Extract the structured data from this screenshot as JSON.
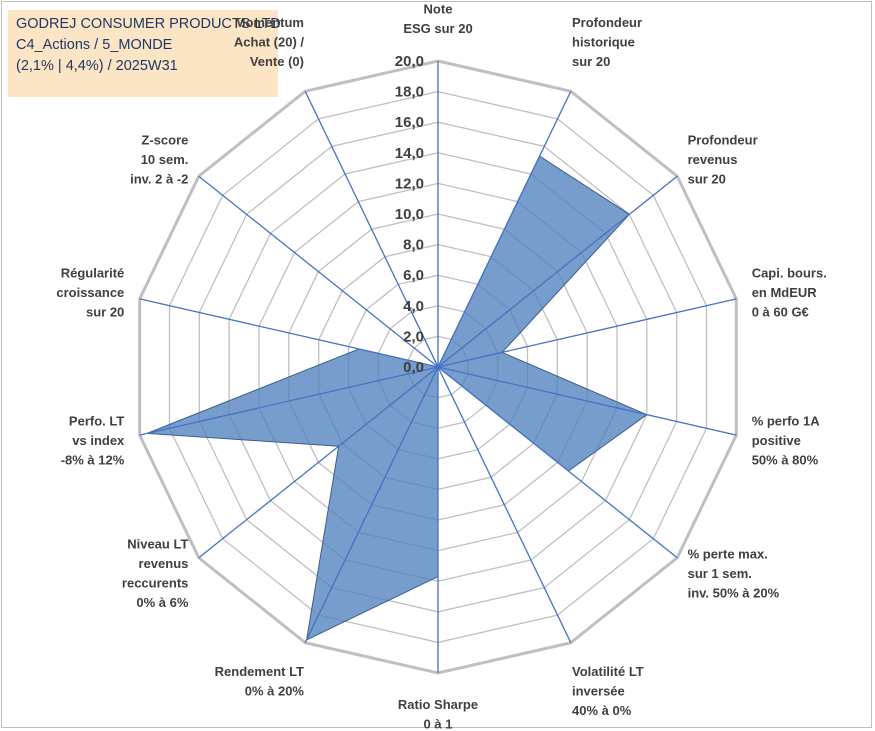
{
  "header": {
    "line1": "GODREJ CONSUMER PRODUCTS LTD",
    "line2": "C4_Actions / 5_MONDE",
    "line3": "(2,1% | 4,4%) / 2025W31"
  },
  "chart_data": {
    "type": "radar",
    "axes": [
      [
        "Note",
        "ESG sur 20"
      ],
      [
        "Profondeur",
        "historique",
        "sur 20"
      ],
      [
        "Profondeur",
        "revenus",
        "sur 20"
      ],
      [
        "Capi. bours.",
        "en MdEUR",
        "0 à 60 G€"
      ],
      [
        "% perfo 1A",
        "positive",
        "50% à 80%"
      ],
      [
        "% perte max.",
        "sur 1 sem.",
        "inv. 50% à 20%"
      ],
      [
        "Volatilité LT",
        "inversée",
        "40% à 0%"
      ],
      [
        "Ratio Sharpe",
        "0 à 1"
      ],
      [
        "Rendement LT",
        "0% à 20%"
      ],
      [
        "Niveau LT",
        "revenus",
        "reccurents",
        "0% à 6%"
      ],
      [
        "Perfo. LT",
        "vs index",
        "-8% à 12%"
      ],
      [
        "Régularité",
        "croissance",
        "sur 20"
      ],
      [
        "Z-score",
        "10 sem.",
        "inv. 2 à -2"
      ],
      [
        "Momentum",
        "Achat (20) /",
        "Vente (0)"
      ]
    ],
    "values": [
      0,
      15.3,
      16.0,
      4.3,
      14.0,
      10.9,
      0,
      13.7,
      19.8,
      8.3,
      19.5,
      5.3,
      0,
      4.8
    ],
    "rlim": [
      0,
      20
    ],
    "ticks": [
      "0,0",
      "2,0",
      "4,0",
      "6,0",
      "8,0",
      "10,0",
      "12,0",
      "14,0",
      "16,0",
      "18,0",
      "20,0"
    ],
    "grid": true,
    "colors": {
      "fill": "#4f81bd",
      "grid": "#bfbfbf",
      "spoke": "#4472c4"
    }
  }
}
